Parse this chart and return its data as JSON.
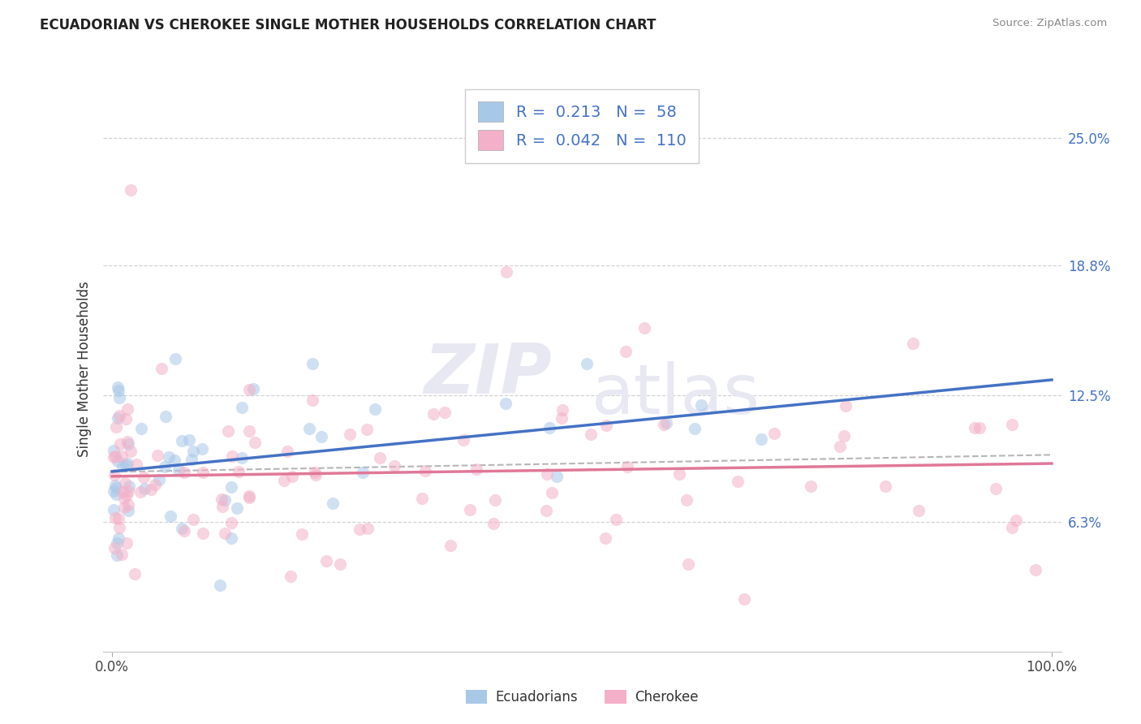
{
  "title": "ECUADORIAN VS CHEROKEE SINGLE MOTHER HOUSEHOLDS CORRELATION CHART",
  "source": "Source: ZipAtlas.com",
  "ylabel": "Single Mother Households",
  "right_yticklabels": [
    "6.3%",
    "12.5%",
    "18.8%",
    "25.0%"
  ],
  "right_ytick_vals": [
    6.3,
    12.5,
    18.8,
    25.0
  ],
  "legend_label1": "Ecuadorians",
  "legend_label2": "Cherokee",
  "legend_r1": "0.213",
  "legend_n1": "58",
  "legend_r2": "0.042",
  "legend_n2": "110",
  "blue_fill": "#a8c8e8",
  "blue_edge": "#6699cc",
  "pink_fill": "#f4b0c8",
  "pink_edge": "#e07898",
  "blue_line_color": "#4472c4",
  "pink_line_color": "#e07898",
  "dash_line_color": "#aaaaaa",
  "grid_color": "#cccccc",
  "title_color": "#222222",
  "source_color": "#888888",
  "watermark_color": "#e8e8f2",
  "xmin": 0,
  "xmax": 100,
  "ymin": 0,
  "ymax": 27.5
}
